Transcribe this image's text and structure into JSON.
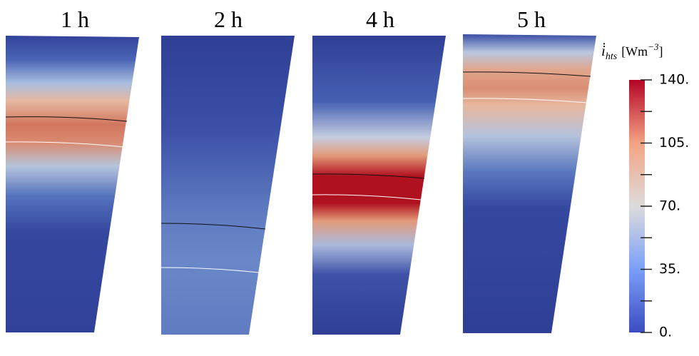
{
  "panels": [
    {
      "title": "1 h"
    },
    {
      "title": "2 h"
    },
    {
      "title": "4 h"
    },
    {
      "title": "5 h"
    }
  ],
  "colorbar": {
    "symbol": "i̇",
    "subscript": "hts",
    "unit": "[Wm",
    "unit_exponent": "−3",
    "unit_close": "]",
    "ylim": [
      0,
      140
    ],
    "ticks": [
      {
        "value": 0,
        "label": "0."
      },
      {
        "value": 35,
        "label": "35."
      },
      {
        "value": 70,
        "label": "70."
      },
      {
        "value": 105,
        "label": "105."
      },
      {
        "value": 140,
        "label": "140."
      }
    ],
    "minor_ticks": [
      17.5,
      52.5,
      87.5,
      122.5
    ]
  }
}
